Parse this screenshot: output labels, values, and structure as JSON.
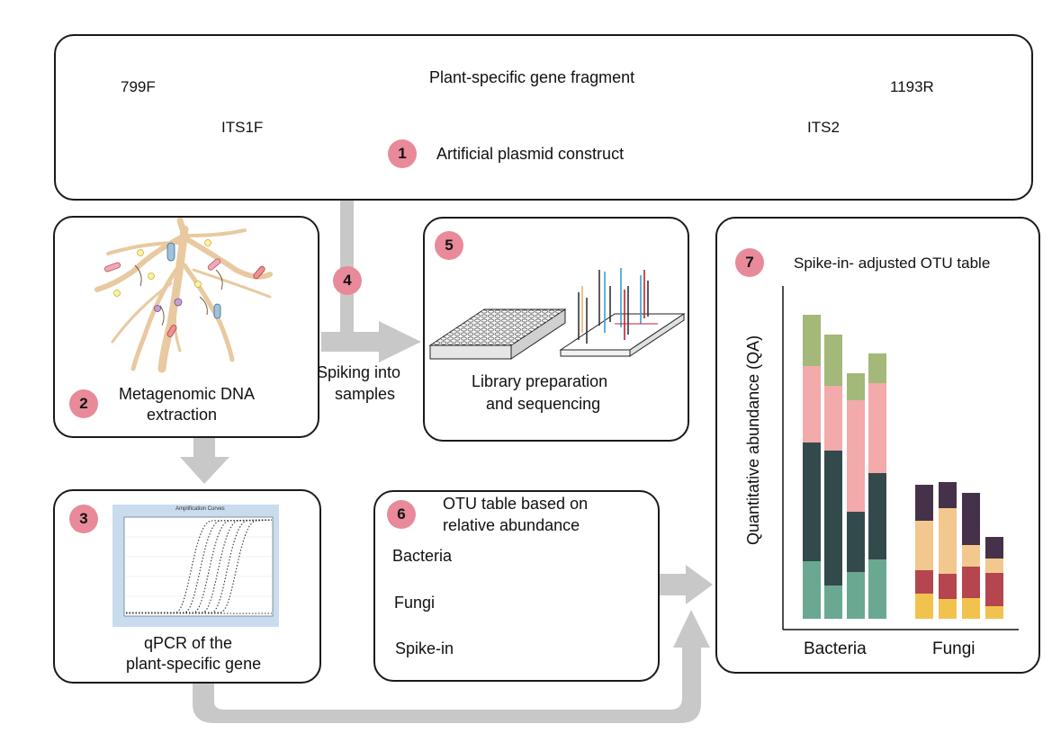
{
  "plasmid": {
    "primer_f": "799F",
    "primer_r": "1193R",
    "its1": "ITS1F",
    "its2": "ITS2",
    "fragment_label": "Plant-specific gene fragment",
    "step_num": "1",
    "title": "Artificial plasmid construct"
  },
  "extraction": {
    "step_num": "2",
    "line1": "Metagenomic DNA",
    "line2": "extraction"
  },
  "qpcr": {
    "step_num": "3",
    "chart_title": "Amplification Curves",
    "line1": "qPCR of the",
    "line2": "plant-specific gene"
  },
  "spiking": {
    "step_num": "4",
    "line1": "Spiking into",
    "line2": "samples"
  },
  "library": {
    "step_num": "5",
    "line1": "Library preparation",
    "line2": "and sequencing"
  },
  "otu": {
    "step_num": "6",
    "line1": "OTU table based on",
    "line2": "relative abundance",
    "rows": [
      {
        "label": "Bacteria",
        "color": "#5a9e88"
      },
      {
        "label": "Fungi",
        "color": "#c0404a"
      },
      {
        "label": "Spike-in",
        "color": "#3a5a95"
      }
    ]
  },
  "adjusted": {
    "step_num": "7",
    "title": "Spike-in- adjusted OTU table",
    "ylabel": "Quantitative abundance (QA)",
    "groups": [
      "Bacteria",
      "Fungi"
    ]
  },
  "colors": {
    "step_badge": "#e88a9a",
    "primer_gray": "#bdbdbd",
    "its_blue": "#c5d6ee",
    "fragment_peach": "#f6cfae",
    "arrow_gray": "#c8c8c8",
    "pin_red": "#e0455b"
  },
  "chart_data": {
    "type": "bar",
    "stacked": true,
    "categories": [
      "Bacteria",
      "Bacteria",
      "Bacteria",
      "Bacteria",
      "Fungi",
      "Fungi",
      "Fungi",
      "Fungi"
    ],
    "ylabel": "Quantitative abundance (QA)",
    "series": [
      {
        "color": "#6aa892",
        "values": [
          64,
          37,
          52,
          66,
          0,
          0,
          0,
          0
        ]
      },
      {
        "color": "#334a4c",
        "values": [
          132,
          150,
          67,
          96,
          0,
          0,
          0,
          0
        ]
      },
      {
        "color": "#f2aaaa",
        "values": [
          85,
          72,
          124,
          100,
          0,
          0,
          0,
          0
        ]
      },
      {
        "color": "#a3b879",
        "values": [
          57,
          57,
          30,
          33,
          0,
          0,
          0,
          0
        ]
      },
      {
        "color": "#f2c24f",
        "values": [
          0,
          0,
          0,
          0,
          28,
          22,
          23,
          14
        ]
      },
      {
        "color": "#b5454e",
        "values": [
          0,
          0,
          0,
          0,
          26,
          28,
          35,
          37
        ]
      },
      {
        "color": "#f2c88e",
        "values": [
          0,
          0,
          0,
          0,
          55,
          73,
          24,
          16
        ]
      },
      {
        "color": "#45324a",
        "values": [
          0,
          0,
          0,
          0,
          40,
          29,
          58,
          24
        ]
      }
    ]
  }
}
